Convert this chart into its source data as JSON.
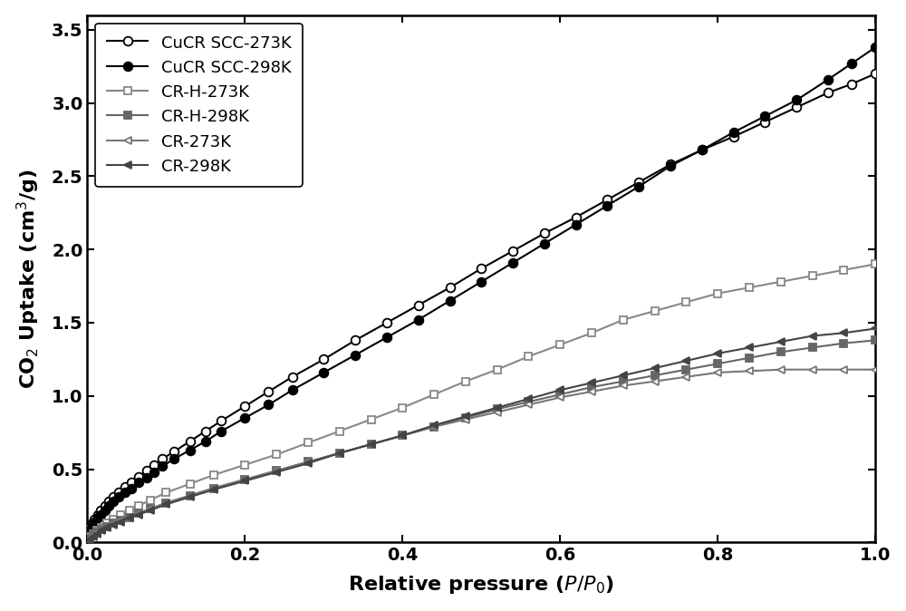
{
  "title": "",
  "xlabel": "Relative pressure ($P/P_0$)",
  "ylabel": "CO$_2$ Uptake (cm$^3$/g)",
  "xlim": [
    0.0,
    1.0
  ],
  "ylim": [
    0.0,
    3.6
  ],
  "yticks": [
    0.0,
    0.5,
    1.0,
    1.5,
    2.0,
    2.5,
    3.0,
    3.5
  ],
  "xticks": [
    0.0,
    0.2,
    0.4,
    0.6,
    0.8,
    1.0
  ],
  "series": [
    {
      "label": "CuCR SCC-273K",
      "color": "#000000",
      "marker": "o",
      "fillstyle": "none",
      "markersize": 7,
      "linewidth": 1.5,
      "x": [
        0.003,
        0.006,
        0.009,
        0.013,
        0.017,
        0.022,
        0.027,
        0.033,
        0.04,
        0.048,
        0.056,
        0.065,
        0.075,
        0.085,
        0.095,
        0.11,
        0.13,
        0.15,
        0.17,
        0.2,
        0.23,
        0.26,
        0.3,
        0.34,
        0.38,
        0.42,
        0.46,
        0.5,
        0.54,
        0.58,
        0.62,
        0.66,
        0.7,
        0.74,
        0.78,
        0.82,
        0.86,
        0.9,
        0.94,
        0.97,
        1.0
      ],
      "y": [
        0.1,
        0.13,
        0.16,
        0.19,
        0.22,
        0.25,
        0.28,
        0.31,
        0.34,
        0.38,
        0.41,
        0.45,
        0.49,
        0.53,
        0.57,
        0.62,
        0.69,
        0.76,
        0.83,
        0.93,
        1.03,
        1.13,
        1.25,
        1.38,
        1.5,
        1.62,
        1.74,
        1.87,
        1.99,
        2.11,
        2.22,
        2.34,
        2.46,
        2.58,
        2.68,
        2.77,
        2.87,
        2.97,
        3.07,
        3.13,
        3.2
      ]
    },
    {
      "label": "CuCR SCC-298K",
      "color": "#000000",
      "marker": "o",
      "fillstyle": "full",
      "markersize": 7,
      "linewidth": 1.5,
      "x": [
        0.003,
        0.006,
        0.009,
        0.013,
        0.017,
        0.022,
        0.027,
        0.033,
        0.04,
        0.048,
        0.056,
        0.065,
        0.075,
        0.085,
        0.095,
        0.11,
        0.13,
        0.15,
        0.17,
        0.2,
        0.23,
        0.26,
        0.3,
        0.34,
        0.38,
        0.42,
        0.46,
        0.5,
        0.54,
        0.58,
        0.62,
        0.66,
        0.7,
        0.74,
        0.78,
        0.82,
        0.86,
        0.9,
        0.94,
        0.97,
        1.0
      ],
      "y": [
        0.08,
        0.11,
        0.14,
        0.17,
        0.19,
        0.22,
        0.25,
        0.28,
        0.31,
        0.34,
        0.37,
        0.41,
        0.44,
        0.48,
        0.52,
        0.57,
        0.63,
        0.69,
        0.76,
        0.85,
        0.94,
        1.04,
        1.16,
        1.28,
        1.4,
        1.52,
        1.65,
        1.78,
        1.91,
        2.04,
        2.17,
        2.3,
        2.43,
        2.57,
        2.68,
        2.8,
        2.91,
        3.02,
        3.16,
        3.27,
        3.38
      ]
    },
    {
      "label": "CR-H-273K",
      "color": "#888888",
      "marker": "s",
      "fillstyle": "none",
      "markersize": 6,
      "linewidth": 1.5,
      "x": [
        0.003,
        0.007,
        0.012,
        0.018,
        0.025,
        0.033,
        0.042,
        0.053,
        0.065,
        0.08,
        0.1,
        0.13,
        0.16,
        0.2,
        0.24,
        0.28,
        0.32,
        0.36,
        0.4,
        0.44,
        0.48,
        0.52,
        0.56,
        0.6,
        0.64,
        0.68,
        0.72,
        0.76,
        0.8,
        0.84,
        0.88,
        0.92,
        0.96,
        1.0
      ],
      "y": [
        0.04,
        0.06,
        0.08,
        0.1,
        0.13,
        0.16,
        0.19,
        0.22,
        0.25,
        0.29,
        0.34,
        0.4,
        0.46,
        0.53,
        0.6,
        0.68,
        0.76,
        0.84,
        0.92,
        1.01,
        1.1,
        1.18,
        1.27,
        1.35,
        1.43,
        1.52,
        1.58,
        1.64,
        1.7,
        1.74,
        1.78,
        1.82,
        1.86,
        1.9
      ]
    },
    {
      "label": "CR-H-298K",
      "color": "#666666",
      "marker": "s",
      "fillstyle": "full",
      "markersize": 6,
      "linewidth": 1.5,
      "x": [
        0.003,
        0.007,
        0.012,
        0.018,
        0.025,
        0.033,
        0.042,
        0.053,
        0.065,
        0.08,
        0.1,
        0.13,
        0.16,
        0.2,
        0.24,
        0.28,
        0.32,
        0.36,
        0.4,
        0.44,
        0.48,
        0.52,
        0.56,
        0.6,
        0.64,
        0.68,
        0.72,
        0.76,
        0.8,
        0.84,
        0.88,
        0.92,
        0.96,
        1.0
      ],
      "y": [
        0.03,
        0.05,
        0.07,
        0.09,
        0.11,
        0.13,
        0.15,
        0.17,
        0.2,
        0.23,
        0.27,
        0.32,
        0.37,
        0.43,
        0.49,
        0.55,
        0.61,
        0.67,
        0.73,
        0.79,
        0.85,
        0.91,
        0.96,
        1.01,
        1.06,
        1.1,
        1.14,
        1.18,
        1.22,
        1.26,
        1.3,
        1.33,
        1.36,
        1.38
      ]
    },
    {
      "label": "CR-273K",
      "color": "#777777",
      "marker": "<",
      "fillstyle": "none",
      "markersize": 6,
      "linewidth": 1.5,
      "x": [
        0.003,
        0.007,
        0.012,
        0.018,
        0.025,
        0.033,
        0.042,
        0.053,
        0.065,
        0.08,
        0.1,
        0.13,
        0.16,
        0.2,
        0.24,
        0.28,
        0.32,
        0.36,
        0.4,
        0.44,
        0.48,
        0.52,
        0.56,
        0.6,
        0.64,
        0.68,
        0.72,
        0.76,
        0.8,
        0.84,
        0.88,
        0.92,
        0.96,
        1.0
      ],
      "y": [
        0.03,
        0.05,
        0.07,
        0.09,
        0.11,
        0.13,
        0.15,
        0.17,
        0.2,
        0.23,
        0.27,
        0.32,
        0.37,
        0.43,
        0.49,
        0.55,
        0.61,
        0.67,
        0.73,
        0.79,
        0.84,
        0.89,
        0.94,
        0.99,
        1.03,
        1.07,
        1.1,
        1.13,
        1.16,
        1.17,
        1.18,
        1.18,
        1.18,
        1.18
      ]
    },
    {
      "label": "CR-298K",
      "color": "#444444",
      "marker": "<",
      "fillstyle": "full",
      "markersize": 6,
      "linewidth": 1.5,
      "x": [
        0.003,
        0.007,
        0.012,
        0.018,
        0.025,
        0.033,
        0.042,
        0.053,
        0.065,
        0.08,
        0.1,
        0.13,
        0.16,
        0.2,
        0.24,
        0.28,
        0.32,
        0.36,
        0.4,
        0.44,
        0.48,
        0.52,
        0.56,
        0.6,
        0.64,
        0.68,
        0.72,
        0.76,
        0.8,
        0.84,
        0.88,
        0.92,
        0.96,
        1.0
      ],
      "y": [
        0.02,
        0.04,
        0.06,
        0.08,
        0.1,
        0.12,
        0.14,
        0.17,
        0.19,
        0.22,
        0.26,
        0.31,
        0.36,
        0.42,
        0.48,
        0.54,
        0.61,
        0.67,
        0.73,
        0.8,
        0.86,
        0.92,
        0.98,
        1.04,
        1.09,
        1.14,
        1.19,
        1.24,
        1.29,
        1.33,
        1.37,
        1.41,
        1.43,
        1.46
      ]
    }
  ],
  "legend_loc": "upper left",
  "background_color": "#ffffff",
  "axis_color": "#000000",
  "fontsize_label": 16,
  "fontsize_tick": 14,
  "fontsize_legend": 13
}
